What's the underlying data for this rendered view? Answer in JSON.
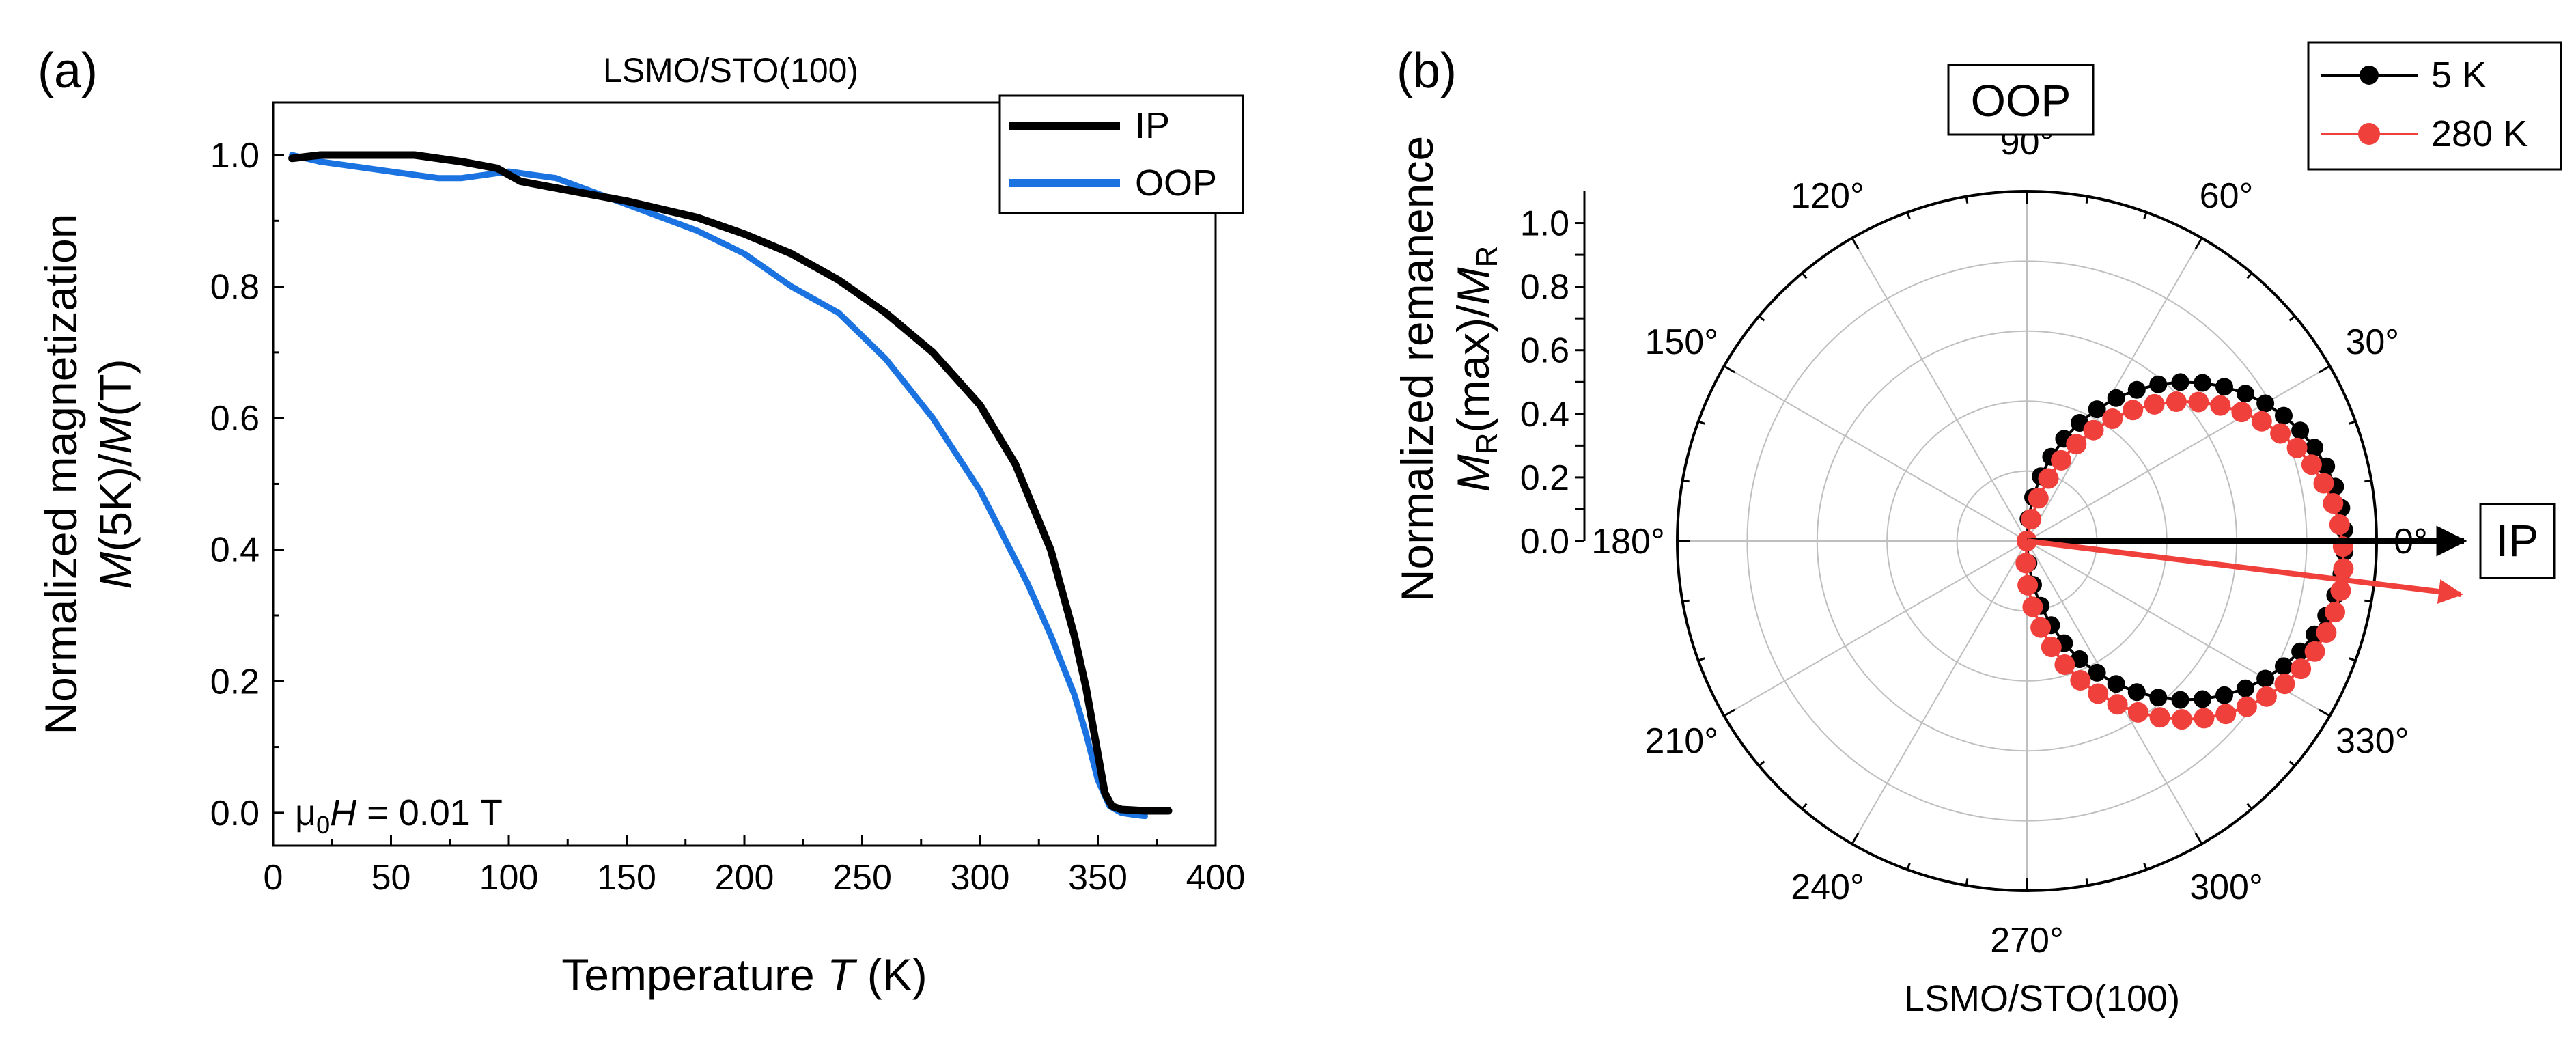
{
  "chart_data": [
    {
      "panel": "(a)",
      "type": "line",
      "title": "LSMO/STO(100)",
      "xlabel_prefix": "Temperature ",
      "xlabel_var": "T",
      "xlabel_suffix": " (K)",
      "ylabel_line1": "Normalized magnetization",
      "ylabel_line2_pre": "M",
      "ylabel_line2_mid": "(5K)/",
      "ylabel_line2_var": "M",
      "ylabel_line2_post": "(T)",
      "xlim": [
        0,
        400
      ],
      "ylim": [
        -0.05,
        1.08
      ],
      "xticks": [
        0,
        50,
        100,
        150,
        200,
        250,
        300,
        350,
        400
      ],
      "yticks": [
        "0.0",
        "0.2",
        "0.4",
        "0.6",
        "0.8",
        "1.0"
      ],
      "annotation_pre": "μ",
      "annotation_sub": "0",
      "annotation_var": "H",
      "annotation_post": " = 0.01 T",
      "series": [
        {
          "name": "IP",
          "color": "#000000",
          "x": [
            8,
            20,
            40,
            60,
            80,
            95,
            105,
            120,
            150,
            180,
            200,
            220,
            240,
            260,
            280,
            300,
            315,
            330,
            340,
            345,
            350,
            353,
            356,
            360,
            370,
            380
          ],
          "y": [
            0.995,
            1.0,
            1.0,
            1.0,
            0.99,
            0.98,
            0.96,
            0.95,
            0.93,
            0.905,
            0.88,
            0.85,
            0.81,
            0.76,
            0.7,
            0.62,
            0.53,
            0.4,
            0.27,
            0.19,
            0.09,
            0.03,
            0.01,
            0.005,
            0.003,
            0.003
          ]
        },
        {
          "name": "OOP",
          "color": "#1a73e0",
          "x": [
            8,
            20,
            40,
            60,
            70,
            80,
            90,
            100,
            110,
            120,
            150,
            180,
            200,
            220,
            240,
            260,
            280,
            300,
            320,
            330,
            340,
            345,
            350,
            355,
            360,
            365,
            370
          ],
          "y": [
            1.0,
            0.99,
            0.98,
            0.97,
            0.965,
            0.965,
            0.97,
            0.975,
            0.97,
            0.965,
            0.925,
            0.885,
            0.85,
            0.8,
            0.76,
            0.69,
            0.6,
            0.49,
            0.35,
            0.27,
            0.18,
            0.12,
            0.05,
            0.01,
            0.0,
            -0.003,
            -0.005
          ]
        }
      ]
    },
    {
      "panel": "(b)",
      "type": "polar",
      "xlabel": "LSMO/STO(100)",
      "ylabel_line1": "Normalized remanence",
      "ylabel_M1": "M",
      "ylabel_sub1": "R",
      "ylabel_mid": "(max)/",
      "ylabel_M2": "M",
      "ylabel_sub2": "R",
      "rlim": [
        0,
        1.1
      ],
      "rticks": [
        "0.0",
        "0.1",
        "0.2",
        "0.3",
        "0.4",
        "0.5",
        "0.6",
        "0.7",
        "0.8",
        "0.9",
        "1.0"
      ],
      "angle_ticks": [
        "0°",
        "30°",
        "60°",
        "90°",
        "120°",
        "150°",
        "180°",
        "210°",
        "240°",
        "270°",
        "300°",
        "330°"
      ],
      "label_oop": "OOP",
      "label_ip": "IP",
      "series": [
        {
          "name": "5 K",
          "color": "#000000",
          "model": "r = |cos(θ - 0°)|, θ in [-90°, 90°], 4° steps",
          "max_angle_deg": 0
        },
        {
          "name": "280 K",
          "color": "#f0403c",
          "model": "r = |cos(θ + 7°)|, θ in [-90°, 90°], 4° steps",
          "max_angle_deg": -7
        }
      ]
    }
  ]
}
